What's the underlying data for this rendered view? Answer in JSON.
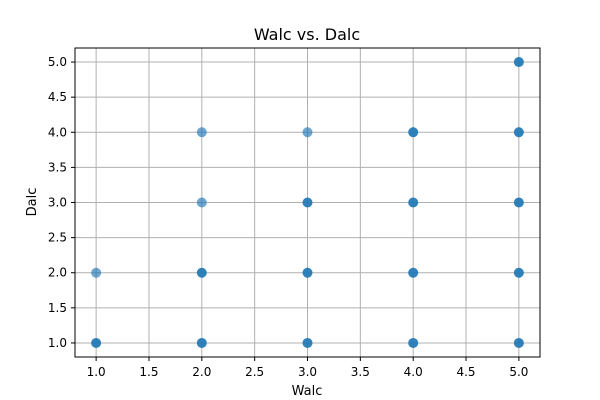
{
  "chart_data": {
    "type": "scatter",
    "title": "Walc vs. Dalc",
    "xlabel": "Walc",
    "ylabel": "Dalc",
    "xlim": [
      0.8,
      5.2
    ],
    "ylim": [
      0.8,
      5.2
    ],
    "xticks": [
      1.0,
      1.5,
      2.0,
      2.5,
      3.0,
      3.5,
      4.0,
      4.5,
      5.0
    ],
    "yticks": [
      1.0,
      1.5,
      2.0,
      2.5,
      3.0,
      3.5,
      4.0,
      4.5,
      5.0
    ],
    "grid": true,
    "marker_color": "#1f77b4",
    "points": [
      {
        "x": 1,
        "y": 1,
        "density": "high"
      },
      {
        "x": 1,
        "y": 2,
        "density": "low"
      },
      {
        "x": 2,
        "y": 1,
        "density": "high"
      },
      {
        "x": 2,
        "y": 2,
        "density": "high"
      },
      {
        "x": 2,
        "y": 3,
        "density": "low"
      },
      {
        "x": 2,
        "y": 4,
        "density": "low"
      },
      {
        "x": 3,
        "y": 1,
        "density": "high"
      },
      {
        "x": 3,
        "y": 2,
        "density": "high"
      },
      {
        "x": 3,
        "y": 3,
        "density": "high"
      },
      {
        "x": 3,
        "y": 4,
        "density": "low"
      },
      {
        "x": 4,
        "y": 1,
        "density": "high"
      },
      {
        "x": 4,
        "y": 2,
        "density": "high"
      },
      {
        "x": 4,
        "y": 3,
        "density": "high"
      },
      {
        "x": 4,
        "y": 4,
        "density": "high"
      },
      {
        "x": 5,
        "y": 1,
        "density": "high"
      },
      {
        "x": 5,
        "y": 2,
        "density": "high"
      },
      {
        "x": 5,
        "y": 3,
        "density": "high"
      },
      {
        "x": 5,
        "y": 4,
        "density": "high"
      },
      {
        "x": 5,
        "y": 5,
        "density": "high"
      }
    ]
  }
}
